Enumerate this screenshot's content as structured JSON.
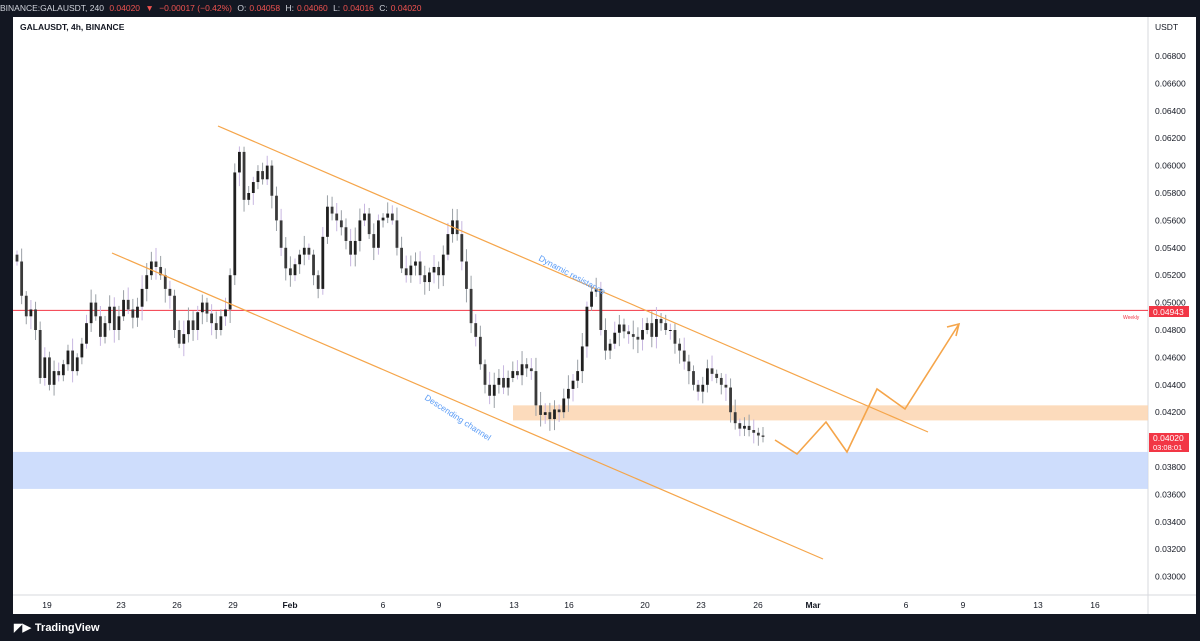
{
  "header": {
    "symbol": "BINANCE:GALAUSDT, 240",
    "last": "0.04020",
    "arrow": "▼",
    "change": "−0.00017 (−0.42%)",
    "o_label": "O:",
    "o": "0.04058",
    "h_label": "H:",
    "h": "0.04060",
    "l_label": "L:",
    "l": "0.04016",
    "c_label": "C:",
    "c": "0.04020"
  },
  "chart_title": "GALAUSDT, 4h, BINANCE",
  "currency": "USDT",
  "y_axis_ticks": [
    "0.06800",
    "0.06600",
    "0.06400",
    "0.06200",
    "0.06000",
    "0.05800",
    "0.05600",
    "0.05400",
    "0.05200",
    "0.05000",
    "0.04800",
    "0.04600",
    "0.04400",
    "0.04200",
    "0.03800",
    "0.03600",
    "0.03400",
    "0.03200",
    "0.03000"
  ],
  "x_axis_labels": [
    "19",
    "23",
    "26",
    "29",
    "Feb",
    "6",
    "9",
    "13",
    "16",
    "20",
    "23",
    "26",
    "Mar",
    "6",
    "9",
    "13",
    "16"
  ],
  "weekly_label": "Weekly",
  "weekly_price": "0.04943",
  "current_price": "0.04020",
  "countdown": "03:08:01",
  "annotations": {
    "dynamic": "Dynamic resistance",
    "descending": "Descending channel"
  },
  "brand": "TradingView",
  "colors": {
    "up": "#2a2a2a",
    "down": "#2a2a2a",
    "weekly_line": "#f23645",
    "channel": "#f5a54a",
    "support_zone": "#c5d7fb",
    "resistance_zone": "#fcd5b0"
  },
  "chart_data": {
    "type": "candlestick",
    "y_range": [
      0.0292,
      0.0695
    ],
    "weekly_level": 0.04943,
    "support_zone": [
      0.0364,
      0.0391
    ],
    "resistance_zone": [
      0.0414,
      0.0425
    ],
    "closes": [
      0.053,
      0.0505,
      0.049,
      0.0495,
      0.048,
      0.0445,
      0.046,
      0.044,
      0.045,
      0.0447,
      0.0455,
      0.0465,
      0.045,
      0.046,
      0.047,
      0.0485,
      0.05,
      0.049,
      0.0475,
      0.0485,
      0.0497,
      0.048,
      0.049,
      0.0502,
      0.0495,
      0.0489,
      0.0497,
      0.051,
      0.052,
      0.053,
      0.0526,
      0.052,
      0.051,
      0.0505,
      0.048,
      0.047,
      0.0477,
      0.0487,
      0.048,
      0.0493,
      0.05,
      0.0492,
      0.0485,
      0.048,
      0.049,
      0.0495,
      0.052,
      0.0595,
      0.061,
      0.0575,
      0.058,
      0.0588,
      0.0596,
      0.059,
      0.06,
      0.0578,
      0.056,
      0.054,
      0.0525,
      0.052,
      0.0528,
      0.0535,
      0.054,
      0.0535,
      0.052,
      0.051,
      0.0548,
      0.057,
      0.0565,
      0.056,
      0.0555,
      0.0545,
      0.0535,
      0.0545,
      0.056,
      0.0565,
      0.055,
      0.054,
      0.056,
      0.0562,
      0.0565,
      0.056,
      0.054,
      0.0525,
      0.052,
      0.0527,
      0.053,
      0.052,
      0.0515,
      0.0522,
      0.0526,
      0.052,
      0.0535,
      0.055,
      0.056,
      0.055,
      0.053,
      0.051,
      0.0485,
      0.0475,
      0.0455,
      0.044,
      0.0432,
      0.044,
      0.0445,
      0.0438,
      0.0445,
      0.045,
      0.0447,
      0.0455,
      0.0452,
      0.045,
      0.0425,
      0.0418,
      0.042,
      0.0415,
      0.0422,
      0.042,
      0.043,
      0.0437,
      0.0443,
      0.045,
      0.0468,
      0.0497,
      0.0508,
      0.051,
      0.048,
      0.0465,
      0.047,
      0.0478,
      0.0484,
      0.0479,
      0.0477,
      0.0475,
      0.0473,
      0.048,
      0.0485,
      0.0475,
      0.0488,
      0.0485,
      0.048,
      0.048,
      0.047,
      0.0465,
      0.0457,
      0.045,
      0.044,
      0.0435,
      0.044,
      0.0452,
      0.0448,
      0.0445,
      0.044,
      0.0438,
      0.042,
      0.0412,
      0.0408,
      0.041,
      0.0407,
      0.0405,
      0.0403,
      0.0402
    ]
  }
}
